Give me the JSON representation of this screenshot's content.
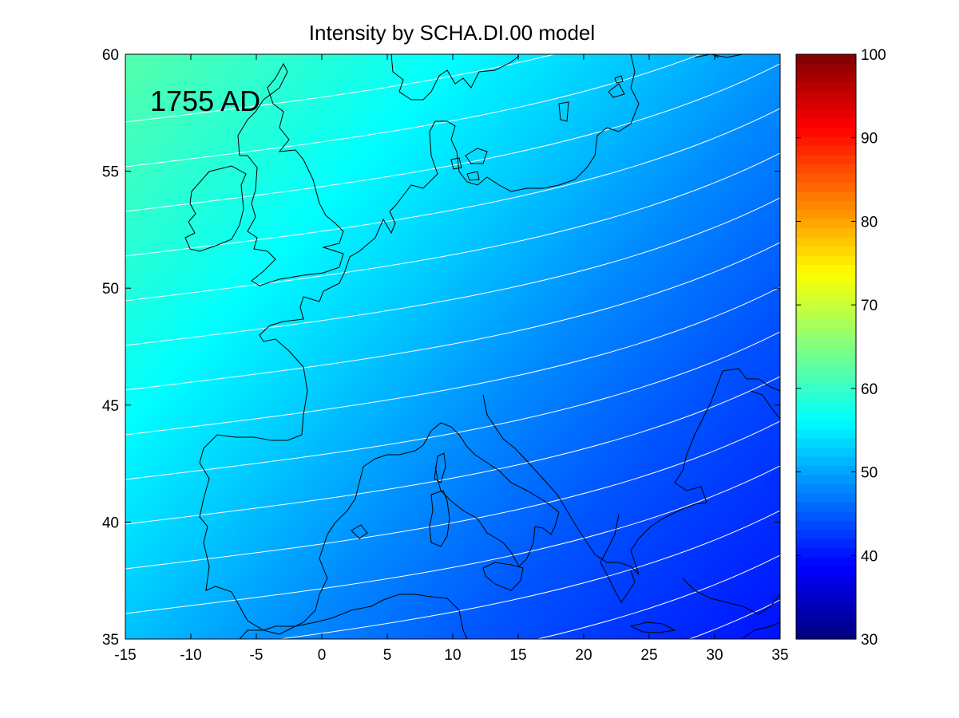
{
  "figure": {
    "title": "Intensity by SCHA.DI.00 model",
    "annotation": "1755 AD"
  },
  "chart_data": {
    "type": "heatmap",
    "title": "Intensity by SCHA.DI.00 model",
    "annotation": "1755 AD",
    "xlim": [
      -15,
      35
    ],
    "ylim": [
      35,
      60
    ],
    "xticks": [
      "-15",
      "-10",
      "-5",
      "0",
      "5",
      "10",
      "15",
      "20",
      "25",
      "30",
      "35"
    ],
    "yticks": [
      "35",
      "40",
      "45",
      "50",
      "55",
      "60"
    ],
    "colorbar": {
      "colormap": "jet",
      "range": [
        30,
        100
      ],
      "ticks": [
        "30",
        "40",
        "50",
        "60",
        "70",
        "80",
        "90",
        "100"
      ]
    },
    "field_trend": {
      "description_units": "intensity",
      "southeast_corner": 41,
      "northwest_corner": 61
    },
    "contour_lines_color": "#ffffff",
    "coastline_color": "#000000"
  }
}
